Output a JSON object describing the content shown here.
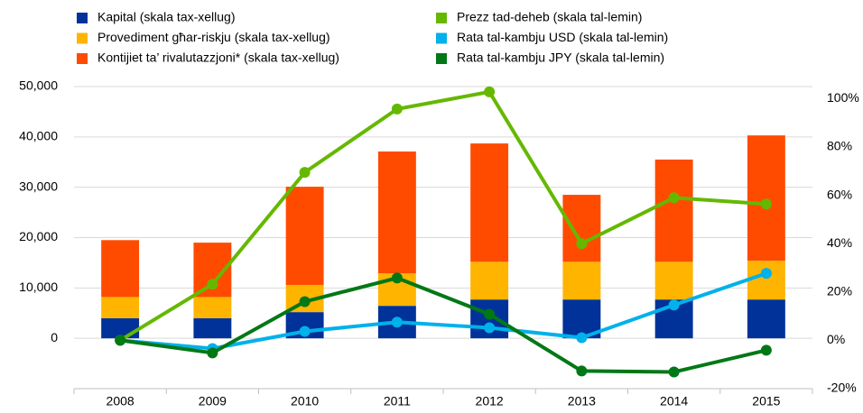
{
  "chart_data": {
    "type": "bar",
    "stacked": true,
    "categories": [
      "2008",
      "2009",
      "2010",
      "2011",
      "2012",
      "2013",
      "2014",
      "2015"
    ],
    "series": [
      {
        "name": "Kapital (skala tax-xellug)",
        "color": "#003299",
        "type": "bar",
        "values": [
          4000,
          4000,
          5200,
          6450,
          7700,
          7700,
          7700,
          7700
        ]
      },
      {
        "name": "Provediment għar-riskju (skala tax-xellug)",
        "color": "#ffb400",
        "type": "bar",
        "values": [
          4200,
          4200,
          5400,
          6450,
          7500,
          7500,
          7500,
          7700
        ]
      },
      {
        "name": "Kontijiet ta’ rivalutazzjoni* (skala tax-xellug)",
        "color": "#ff4b00",
        "type": "bar",
        "values": [
          11300,
          10800,
          19500,
          24200,
          23500,
          13300,
          20300,
          24900
        ]
      },
      {
        "name": "Prezz tad-deheb (skala tal-lemin)",
        "color": "#65b800",
        "type": "line",
        "axis": "y2",
        "values": [
          0,
          23.2,
          69.5,
          95.7,
          102.8,
          40,
          59,
          56.4
        ]
      },
      {
        "name": "Rata tal-kambju USD (skala tal-lemin)",
        "color": "#00b1ea",
        "type": "line",
        "axis": "y2",
        "values": [
          0,
          -3.4,
          3.7,
          7.5,
          5.2,
          1.1,
          14.6,
          27.7
        ]
      },
      {
        "name": "Rata tal-kambju JPY (skala tal-lemin)",
        "color": "#007816",
        "type": "line",
        "axis": "y2",
        "values": [
          0,
          -5.2,
          16,
          25.8,
          10.8,
          -12.7,
          -13.1,
          -4.1
        ]
      }
    ],
    "ylim": [
      -10000,
      50000
    ],
    "yticks": [
      0,
      {
        "value": 10000,
        "label": "10,000"
      },
      {
        "value": 20000,
        "label": "20,000"
      },
      {
        "value": 30000,
        "label": "30,000"
      },
      {
        "value": 40000,
        "label": "40,000"
      },
      {
        "value": 50000,
        "label": "50,000"
      }
    ],
    "y2lim": [
      -20,
      105
    ],
    "y2ticks": [
      {
        "value": -20,
        "label": "-20%"
      },
      {
        "value": 0,
        "label": "0%"
      },
      {
        "value": 20,
        "label": "20%"
      },
      {
        "value": 40,
        "label": "40%"
      },
      {
        "value": 60,
        "label": "60%"
      },
      {
        "value": 80,
        "label": "80%"
      },
      {
        "value": 100,
        "label": "100%"
      }
    ],
    "grid": true
  }
}
